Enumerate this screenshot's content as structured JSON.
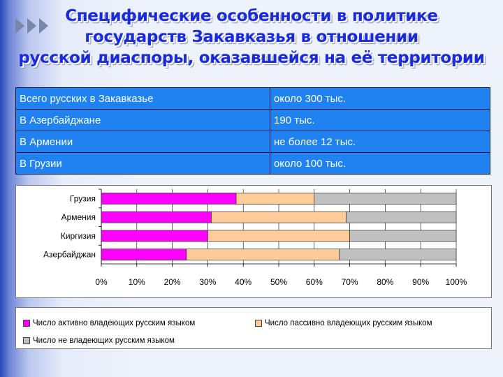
{
  "title": {
    "lines": [
      "Специфические особенности в политике",
      "государств Закавказья в отношении",
      "русской диаспоры, оказавшейся на её территории"
    ]
  },
  "table": {
    "rows": [
      {
        "label": "Всего русских в Закавказье",
        "value": "около 300 тыс."
      },
      {
        "label": "В Азербайджане",
        "value": "190 тыс."
      },
      {
        "label": "В Армении",
        "value": "не более 12 тыс."
      },
      {
        "label": "В Грузии",
        "value": "около 100 тыс."
      }
    ]
  },
  "chart_data": {
    "type": "bar",
    "orientation": "horizontal",
    "stacked": "percent",
    "categories": [
      "Грузия",
      "Армения",
      "Киргизия",
      "Азербайджан"
    ],
    "series": [
      {
        "name": "Число активно владеющих русским языком",
        "color": "#ff00ff",
        "values": [
          38,
          31,
          30,
          24
        ]
      },
      {
        "name": "Число пассивно владеющих русским языком",
        "color": "#ffcc99",
        "values": [
          22,
          38,
          40,
          43
        ]
      },
      {
        "name": "Число не владеющих русским языком",
        "color": "#c0c0c0",
        "values": [
          40,
          31,
          30,
          33
        ]
      }
    ],
    "xlim": [
      0,
      100
    ],
    "xticks": [
      "0%",
      "10%",
      "20%",
      "30%",
      "40%",
      "50%",
      "60%",
      "70%",
      "80%",
      "90%",
      "100%"
    ],
    "grid": true,
    "legend": "bottom"
  }
}
